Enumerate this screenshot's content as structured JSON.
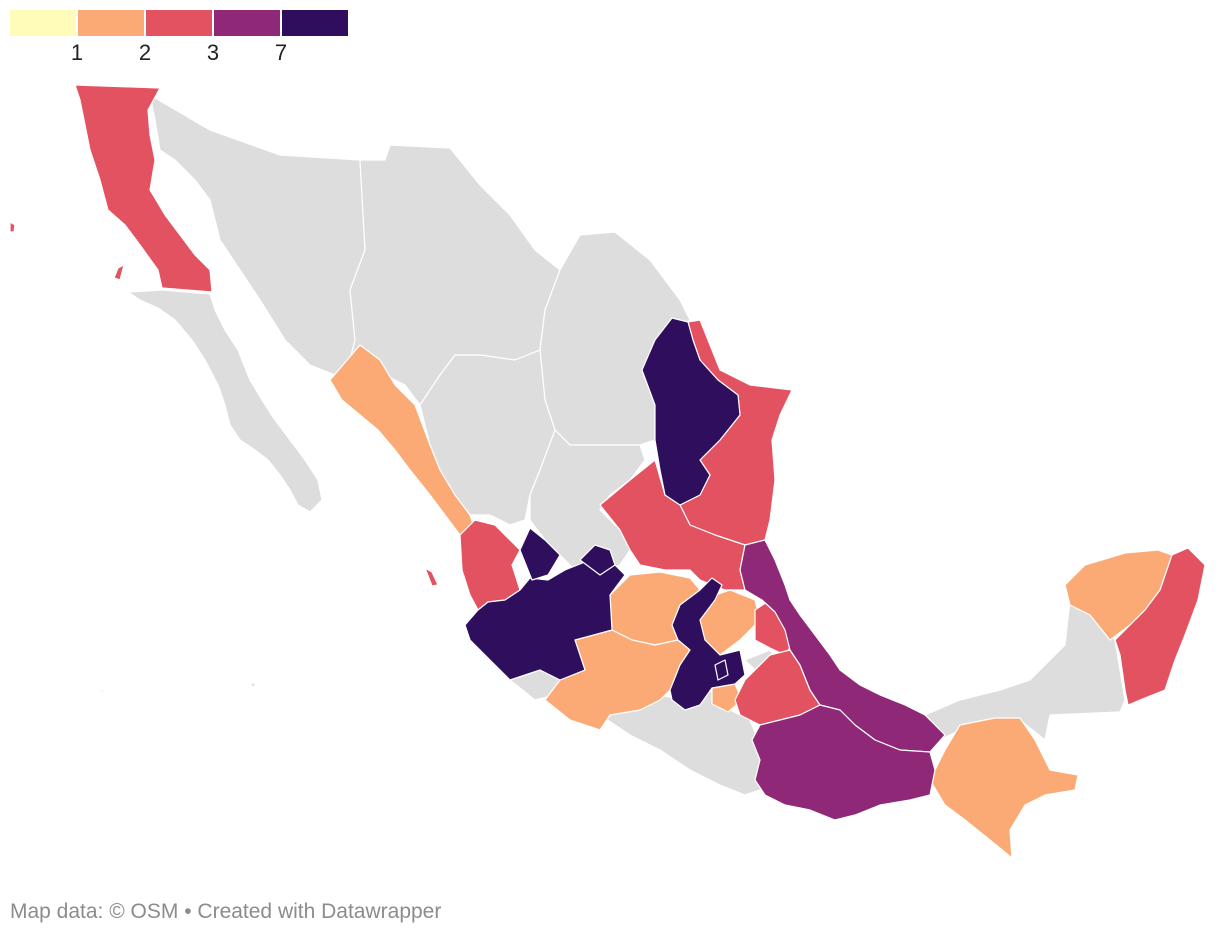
{
  "legend": {
    "bins": [
      {
        "color": "#fffbb8",
        "tick": ""
      },
      {
        "color": "#fcaa75",
        "tick": "1"
      },
      {
        "color": "#e25260",
        "tick": "2"
      },
      {
        "color": "#8f2877",
        "tick": "3"
      },
      {
        "color": "#2f0f5d",
        "tick": "7"
      }
    ]
  },
  "map": {
    "no_data_color": "#dddddd",
    "regions_by_bin": {
      "1": [
        "Sinaloa",
        "Nayarit coast",
        "Guanajuato",
        "Michoacán",
        "Querétaro",
        "Morelos",
        "Chiapas",
        "Yucatán"
      ],
      "2": [
        "Baja California",
        "Nayarit",
        "Tamaulipas",
        "San Luis Potosí",
        "Hidalgo",
        "Puebla",
        "Quintana Roo"
      ],
      "3": [
        "Veracruz",
        "Oaxaca"
      ],
      "7": [
        "Nuevo León",
        "Jalisco",
        "Aguascalientes",
        "Zacatecas south",
        "State of México",
        "Mexico City"
      ]
    }
  },
  "footer": {
    "map_data": "Map data: © OSM",
    "separator": " • ",
    "created": "Created with Datawrapper"
  }
}
